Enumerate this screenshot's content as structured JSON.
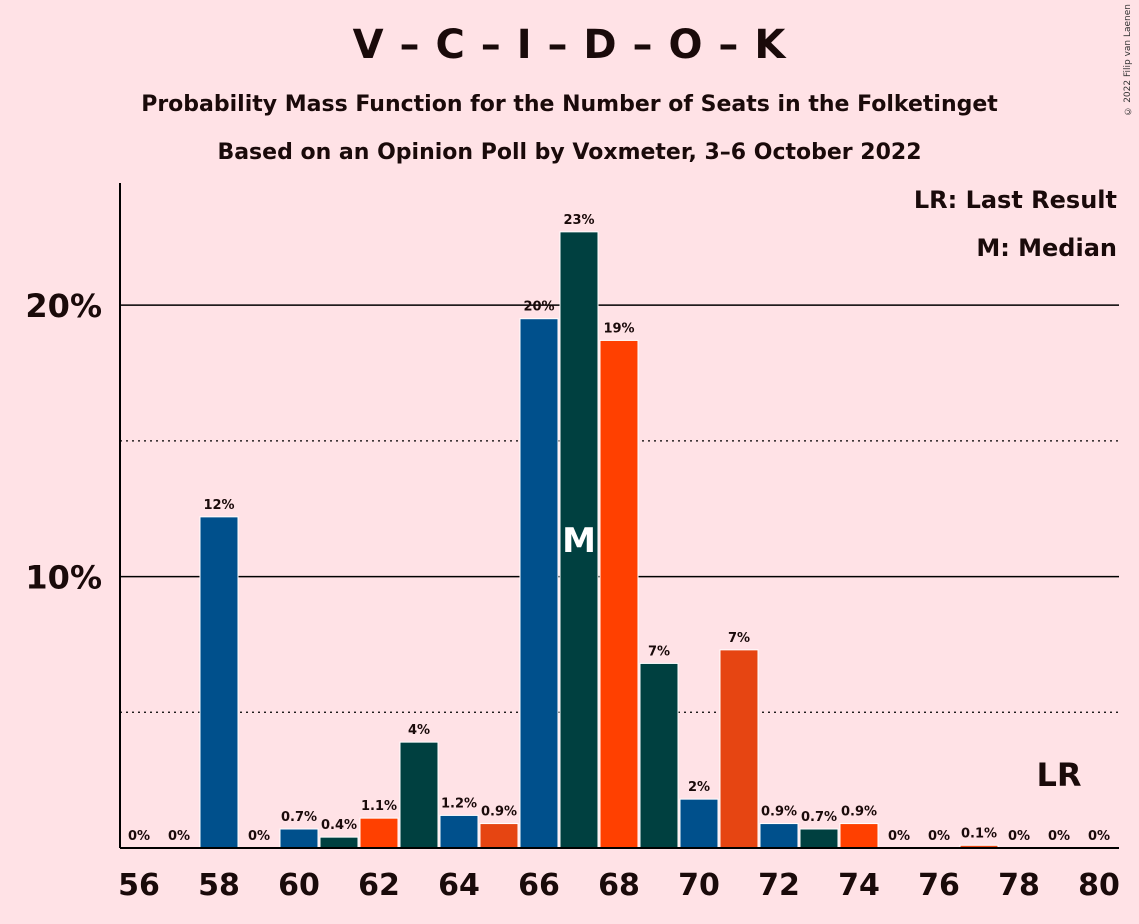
{
  "title": "V – C – I – D – O – K",
  "subtitle1": "Probability Mass Function for the Number of Seats in the Folketinget",
  "subtitle2": "Based on an Opinion Poll by Voxmeter, 3–6 October 2022",
  "copyright": "© 2022 Filip van Laenen",
  "legend": {
    "last_result": "LR: Last Result",
    "median": "M: Median"
  },
  "colors": {
    "background": "#ffe2e6",
    "palette": [
      "#00508c",
      "#004040",
      "#ff4000",
      "#e64512"
    ]
  },
  "chart_data": {
    "type": "bar",
    "x": [
      56,
      57,
      58,
      59,
      60,
      61,
      62,
      63,
      64,
      65,
      66,
      67,
      68,
      69,
      70,
      71,
      72,
      73,
      74,
      75,
      76,
      77,
      78,
      79,
      80
    ],
    "values": [
      0,
      0,
      12.2,
      0,
      0.7,
      0.4,
      1.1,
      3.9,
      1.2,
      0.9,
      19.5,
      22.7,
      18.7,
      6.8,
      1.8,
      7.3,
      0.9,
      0.7,
      0.9,
      0,
      0,
      0.1,
      0,
      0,
      0
    ],
    "labels": [
      "0%",
      "0%",
      "12%",
      "0%",
      "0.7%",
      "0.4%",
      "1.1%",
      "4%",
      "1.2%",
      "0.9%",
      "20%",
      "23%",
      "19%",
      "7%",
      "2%",
      "7%",
      "0.9%",
      "0.7%",
      "0.9%",
      "0%",
      "0%",
      "0.1%",
      "0%",
      "0%",
      "0%"
    ],
    "bar_colors": [
      "#00508c",
      "#004040",
      "#00508c",
      "#00508c",
      "#00508c",
      "#004040",
      "#ff4000",
      "#004040",
      "#00508c",
      "#e64512",
      "#00508c",
      "#004040",
      "#ff4000",
      "#004040",
      "#00508c",
      "#e64512",
      "#00508c",
      "#004040",
      "#ff4000",
      "#00508c",
      "#00508c",
      "#e64512",
      "#00508c",
      "#00508c",
      "#00508c"
    ],
    "x_tick_labels": [
      "56",
      "58",
      "60",
      "62",
      "64",
      "66",
      "68",
      "70",
      "72",
      "74",
      "76",
      "78",
      "80"
    ],
    "y_tick_labels": [
      "10%",
      "20%"
    ],
    "y_ticks": [
      10,
      20
    ],
    "y_minor_ticks": [
      5,
      15
    ],
    "ylim": [
      0,
      24.5
    ],
    "median": {
      "seats": 67,
      "label": "M"
    },
    "last_result": {
      "seats": 79,
      "label": "LR"
    },
    "grid": true
  }
}
